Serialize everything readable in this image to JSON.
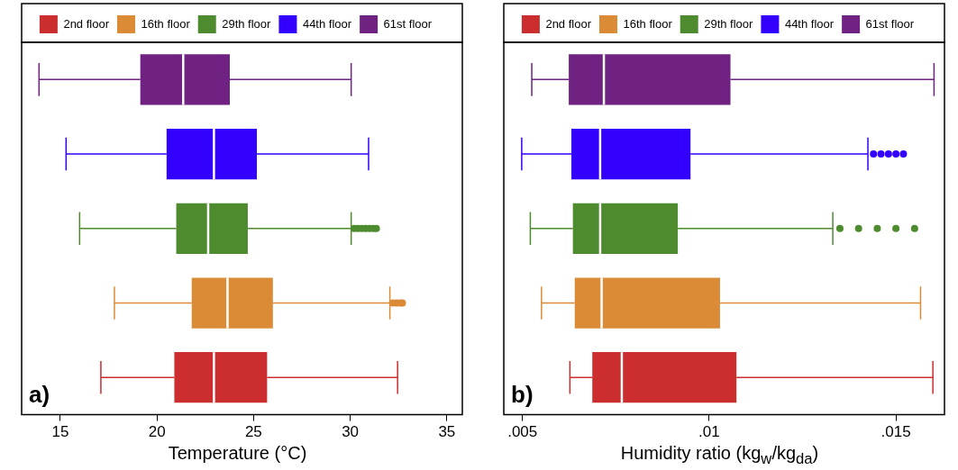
{
  "chart_data": [
    {
      "type": "box",
      "orientation": "horizontal",
      "stacked": true,
      "xlabel": "Temperature (°C)",
      "legend": "top",
      "annotations": [
        "a)"
      ],
      "categories": [
        null,
        null,
        null,
        null,
        null
      ],
      "xlim": [
        13,
        35.8
      ],
      "xticks": [
        15,
        20,
        25,
        30,
        35
      ],
      "series": [
        {
          "name": "2nd floor",
          "color": "#cc2e2f",
          "boxes": [
            null,
            null,
            null,
            null,
            {
              "low": 17.1,
              "q1": 20.9,
              "median": 22.95,
              "q3": 25.7,
              "high": 32.45
            }
          ]
        },
        {
          "name": "16th floor",
          "color": "#db8b35",
          "boxes": [
            null,
            null,
            null,
            {
              "low": 17.8,
              "q1": 21.8,
              "median": 23.65,
              "q3": 26.0,
              "high": 32.05,
              "outliers": [
                32.2,
                32.4,
                32.6,
                32.7
              ]
            },
            null
          ]
        },
        {
          "name": "29th floor",
          "color": "#4e8a2e",
          "boxes": [
            null,
            null,
            {
              "low": 16.0,
              "q1": 21.0,
              "median": 22.65,
              "q3": 24.7,
              "high": 30.05,
              "outliers": [
                30.2,
                30.4,
                30.6,
                30.8,
                31.0,
                31.2,
                31.35
              ]
            },
            null,
            null
          ]
        },
        {
          "name": "44th floor",
          "color": "#3300ff",
          "boxes": [
            null,
            {
              "low": 15.3,
              "q1": 20.5,
              "median": 22.95,
              "q3": 25.17,
              "high": 30.95
            },
            null,
            null,
            null
          ]
        },
        {
          "name": "61st floor",
          "color": "#702283",
          "boxes": [
            {
              "low": 13.9,
              "q1": 19.14,
              "median": 21.36,
              "q3": 23.77,
              "high": 30.05
            },
            null,
            null,
            null,
            null
          ]
        }
      ]
    },
    {
      "type": "box",
      "orientation": "horizontal",
      "stacked": true,
      "xlabel": "Humidity ratio (kg$_{w}$/kg$_{da}$)",
      "legend": "top",
      "annotations": [
        "b)"
      ],
      "categories": [
        null,
        null,
        null,
        null,
        null
      ],
      "xlim": [
        0.0045,
        0.0163
      ],
      "xticks": [
        {
          "value": 0.005,
          "label": ".005"
        },
        {
          "value": 0.01,
          "label": ".01"
        },
        {
          "value": 0.015,
          "label": ".015"
        }
      ],
      "series": [
        {
          "name": "2nd floor",
          "color": "#cc2e2f",
          "boxes": [
            null,
            null,
            null,
            null,
            {
              "low": 0.00627,
              "q1": 0.00687,
              "median": 0.00766,
              "q3": 0.01073,
              "high": 0.01599
            }
          ]
        },
        {
          "name": "16th floor",
          "color": "#db8b35",
          "boxes": [
            null,
            null,
            null,
            {
              "low": 0.00551,
              "q1": 0.0064,
              "median": 0.00712,
              "q3": 0.01029,
              "high": 0.01566
            },
            null
          ]
        },
        {
          "name": "29th floor",
          "color": "#4e8a2e",
          "boxes": [
            null,
            null,
            {
              "low": 0.00521,
              "q1": 0.00635,
              "median": 0.00708,
              "q3": 0.00916,
              "high": 0.01331,
              "outliers": [
                0.0135,
                0.014,
                0.0145,
                0.015,
                0.0155
              ]
            },
            null,
            null
          ]
        },
        {
          "name": "44th floor",
          "color": "#3300ff",
          "boxes": [
            null,
            {
              "low": 0.00498,
              "q1": 0.00631,
              "median": 0.00708,
              "q3": 0.0095,
              "high": 0.01425,
              "outliers": [
                0.0144,
                0.0146,
                0.0148,
                0.015,
                0.0152
              ]
            },
            null,
            null,
            null
          ]
        },
        {
          "name": "61st floor",
          "color": "#702283",
          "boxes": [
            {
              "low": 0.00525,
              "q1": 0.00624,
              "median": 0.00718,
              "q3": 0.01057,
              "high": 0.01602
            },
            null,
            null,
            null,
            null
          ]
        }
      ]
    }
  ]
}
